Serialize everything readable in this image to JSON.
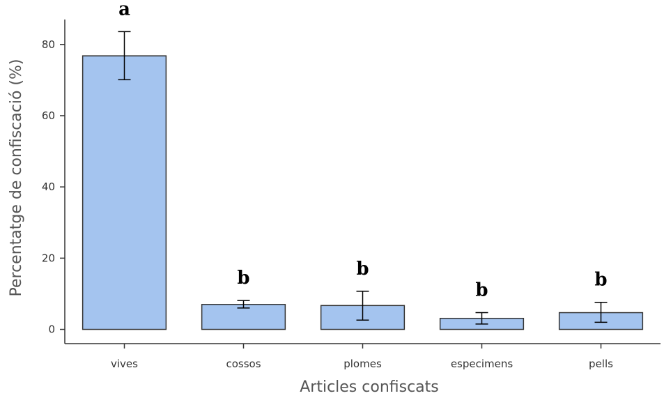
{
  "chart_data": {
    "type": "bar",
    "xlabel": "Articles confiscats",
    "ylabel": "Percentatge de confiscació (%)",
    "categories": [
      "vives",
      "cossos",
      "plomes",
      "especimens",
      "pells"
    ],
    "values": [
      76.8,
      7.0,
      6.7,
      3.1,
      4.7
    ],
    "error_low": [
      70.1,
      6.0,
      2.6,
      1.5,
      2.0
    ],
    "error_high": [
      83.6,
      8.1,
      10.7,
      4.7,
      7.6
    ],
    "significance": [
      "a",
      "b",
      "b",
      "b",
      "b"
    ],
    "yticks": [
      0,
      20,
      40,
      60,
      80
    ],
    "ylim": [
      -4,
      87
    ],
    "grid": false,
    "legend": "none",
    "colors": {
      "bar_fill": "#a4c4ef",
      "bar_stroke": "#333333",
      "axis": "#333333"
    }
  }
}
